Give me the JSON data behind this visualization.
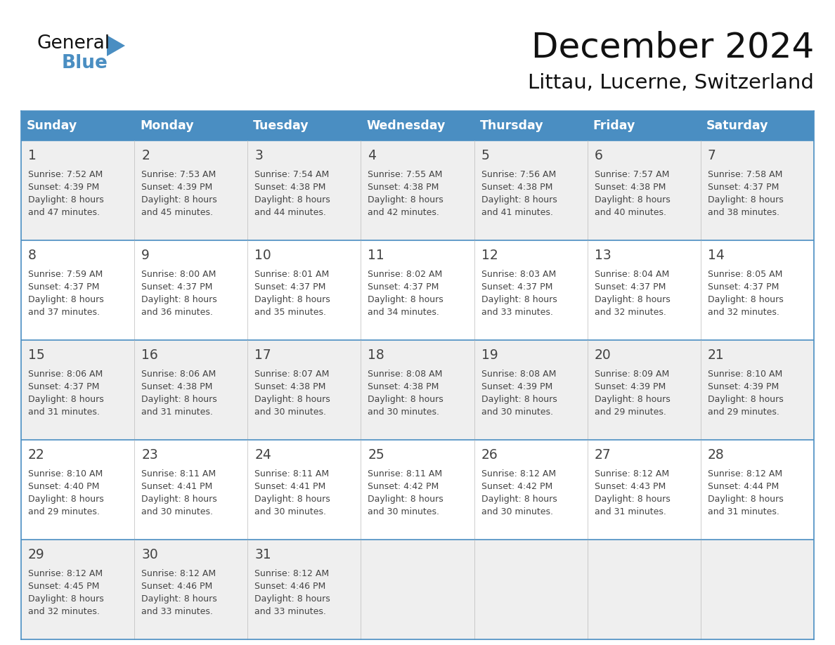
{
  "title": "December 2024",
  "subtitle": "Littau, Lucerne, Switzerland",
  "days_of_week": [
    "Sunday",
    "Monday",
    "Tuesday",
    "Wednesday",
    "Thursday",
    "Friday",
    "Saturday"
  ],
  "header_bg_color": "#4A8EC2",
  "header_text_color": "#FFFFFF",
  "cell_bg_odd": "#EFEFEF",
  "cell_bg_even": "#FFFFFF",
  "border_color": "#4A8EC2",
  "day_num_color": "#444444",
  "cell_text_color": "#444444",
  "title_color": "#111111",
  "subtitle_color": "#111111",
  "calendar_data": [
    [
      {
        "day": 1,
        "sunrise": "7:52 AM",
        "sunset": "4:39 PM",
        "daylight": "8 hours and 47 minutes."
      },
      {
        "day": 2,
        "sunrise": "7:53 AM",
        "sunset": "4:39 PM",
        "daylight": "8 hours and 45 minutes."
      },
      {
        "day": 3,
        "sunrise": "7:54 AM",
        "sunset": "4:38 PM",
        "daylight": "8 hours and 44 minutes."
      },
      {
        "day": 4,
        "sunrise": "7:55 AM",
        "sunset": "4:38 PM",
        "daylight": "8 hours and 42 minutes."
      },
      {
        "day": 5,
        "sunrise": "7:56 AM",
        "sunset": "4:38 PM",
        "daylight": "8 hours and 41 minutes."
      },
      {
        "day": 6,
        "sunrise": "7:57 AM",
        "sunset": "4:38 PM",
        "daylight": "8 hours and 40 minutes."
      },
      {
        "day": 7,
        "sunrise": "7:58 AM",
        "sunset": "4:37 PM",
        "daylight": "8 hours and 38 minutes."
      }
    ],
    [
      {
        "day": 8,
        "sunrise": "7:59 AM",
        "sunset": "4:37 PM",
        "daylight": "8 hours and 37 minutes."
      },
      {
        "day": 9,
        "sunrise": "8:00 AM",
        "sunset": "4:37 PM",
        "daylight": "8 hours and 36 minutes."
      },
      {
        "day": 10,
        "sunrise": "8:01 AM",
        "sunset": "4:37 PM",
        "daylight": "8 hours and 35 minutes."
      },
      {
        "day": 11,
        "sunrise": "8:02 AM",
        "sunset": "4:37 PM",
        "daylight": "8 hours and 34 minutes."
      },
      {
        "day": 12,
        "sunrise": "8:03 AM",
        "sunset": "4:37 PM",
        "daylight": "8 hours and 33 minutes."
      },
      {
        "day": 13,
        "sunrise": "8:04 AM",
        "sunset": "4:37 PM",
        "daylight": "8 hours and 32 minutes."
      },
      {
        "day": 14,
        "sunrise": "8:05 AM",
        "sunset": "4:37 PM",
        "daylight": "8 hours and 32 minutes."
      }
    ],
    [
      {
        "day": 15,
        "sunrise": "8:06 AM",
        "sunset": "4:37 PM",
        "daylight": "8 hours and 31 minutes."
      },
      {
        "day": 16,
        "sunrise": "8:06 AM",
        "sunset": "4:38 PM",
        "daylight": "8 hours and 31 minutes."
      },
      {
        "day": 17,
        "sunrise": "8:07 AM",
        "sunset": "4:38 PM",
        "daylight": "8 hours and 30 minutes."
      },
      {
        "day": 18,
        "sunrise": "8:08 AM",
        "sunset": "4:38 PM",
        "daylight": "8 hours and 30 minutes."
      },
      {
        "day": 19,
        "sunrise": "8:08 AM",
        "sunset": "4:39 PM",
        "daylight": "8 hours and 30 minutes."
      },
      {
        "day": 20,
        "sunrise": "8:09 AM",
        "sunset": "4:39 PM",
        "daylight": "8 hours and 29 minutes."
      },
      {
        "day": 21,
        "sunrise": "8:10 AM",
        "sunset": "4:39 PM",
        "daylight": "8 hours and 29 minutes."
      }
    ],
    [
      {
        "day": 22,
        "sunrise": "8:10 AM",
        "sunset": "4:40 PM",
        "daylight": "8 hours and 29 minutes."
      },
      {
        "day": 23,
        "sunrise": "8:11 AM",
        "sunset": "4:41 PM",
        "daylight": "8 hours and 30 minutes."
      },
      {
        "day": 24,
        "sunrise": "8:11 AM",
        "sunset": "4:41 PM",
        "daylight": "8 hours and 30 minutes."
      },
      {
        "day": 25,
        "sunrise": "8:11 AM",
        "sunset": "4:42 PM",
        "daylight": "8 hours and 30 minutes."
      },
      {
        "day": 26,
        "sunrise": "8:12 AM",
        "sunset": "4:42 PM",
        "daylight": "8 hours and 30 minutes."
      },
      {
        "day": 27,
        "sunrise": "8:12 AM",
        "sunset": "4:43 PM",
        "daylight": "8 hours and 31 minutes."
      },
      {
        "day": 28,
        "sunrise": "8:12 AM",
        "sunset": "4:44 PM",
        "daylight": "8 hours and 31 minutes."
      }
    ],
    [
      {
        "day": 29,
        "sunrise": "8:12 AM",
        "sunset": "4:45 PM",
        "daylight": "8 hours and 32 minutes."
      },
      {
        "day": 30,
        "sunrise": "8:12 AM",
        "sunset": "4:46 PM",
        "daylight": "8 hours and 33 minutes."
      },
      {
        "day": 31,
        "sunrise": "8:12 AM",
        "sunset": "4:46 PM",
        "daylight": "8 hours and 33 minutes."
      },
      null,
      null,
      null,
      null
    ]
  ]
}
